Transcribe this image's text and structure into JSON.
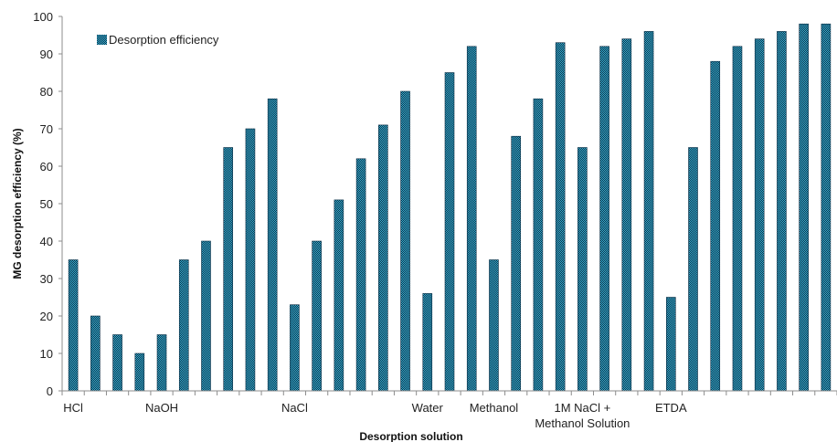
{
  "chart_data": {
    "type": "bar",
    "title": "",
    "xlabel": "Desorption solution",
    "ylabel": "MG desorption efficiency (%)",
    "ylim": [
      0,
      100
    ],
    "yticks": [
      0,
      10,
      20,
      30,
      40,
      50,
      60,
      70,
      80,
      90,
      100
    ],
    "legend_position": "top-left",
    "grid": false,
    "series": [
      {
        "name": "Desorption efficiency",
        "color": "#1a6fa0",
        "values": [
          35,
          20,
          15,
          10,
          15,
          35,
          40,
          65,
          70,
          78,
          23,
          40,
          51,
          62,
          71,
          80,
          26,
          85,
          92,
          35,
          68,
          78,
          93,
          65,
          92,
          94,
          96,
          25,
          65,
          88,
          92,
          94,
          96,
          98,
          98
        ]
      }
    ],
    "category_labels": [
      {
        "bar_index": 0,
        "lines": [
          "HCl"
        ]
      },
      {
        "bar_index": 4,
        "lines": [
          "NaOH"
        ]
      },
      {
        "bar_index": 10,
        "lines": [
          "NaCl"
        ]
      },
      {
        "bar_index": 16,
        "lines": [
          "Water"
        ]
      },
      {
        "bar_index": 19,
        "lines": [
          "Methanol"
        ]
      },
      {
        "bar_index": 23,
        "lines": [
          "1M NaCl +",
          "Methanol Solution"
        ]
      },
      {
        "bar_index": 27,
        "lines": [
          "ETDA"
        ]
      }
    ]
  }
}
